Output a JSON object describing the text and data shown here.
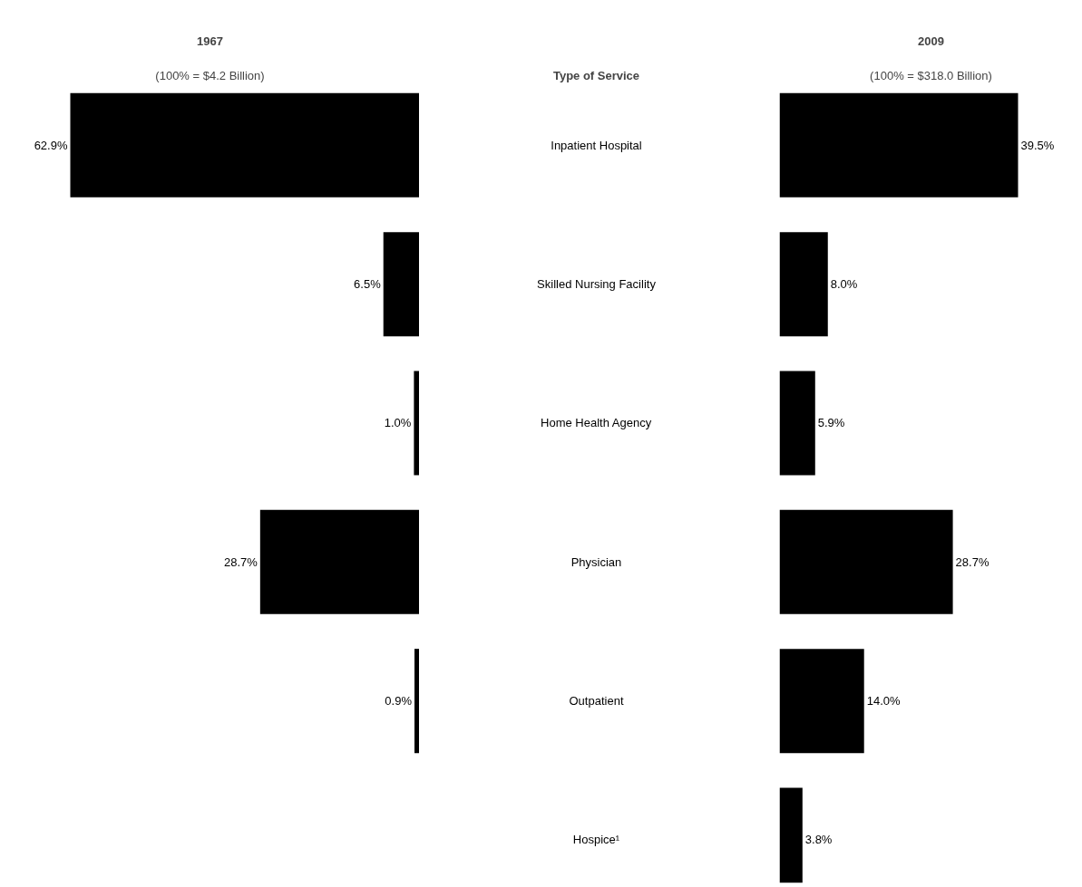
{
  "chart_data": [
    {
      "type": "bar",
      "orientation": "horizontal",
      "title": "1967",
      "subtitle": "(100% = $4.2 Billion)",
      "ylabel": "Type of Service",
      "categories": [
        "Inpatient Hospital",
        "Skilled Nursing Facility",
        "Home Health Agency",
        "Physician",
        "Outpatient",
        "Hospice¹"
      ],
      "values": [
        62.9,
        6.5,
        1.0,
        28.7,
        0.9,
        null
      ],
      "value_labels": [
        "62.9%",
        "6.5%",
        "1.0%",
        "28.7%",
        "0.9%",
        null
      ],
      "color": "#000000"
    },
    {
      "type": "bar",
      "orientation": "horizontal",
      "title": "2009",
      "subtitle": "(100% = $318.0 Billion)",
      "categories": [
        null,
        null,
        null,
        null,
        null,
        null
      ],
      "values": [
        39.5,
        8.0,
        5.9,
        28.7,
        14.0,
        3.8
      ],
      "value_labels": [
        "39.5%",
        "8.0%",
        "5.9%",
        "28.7%",
        "14.0%",
        "3.8%"
      ],
      "color": "#000000"
    }
  ]
}
